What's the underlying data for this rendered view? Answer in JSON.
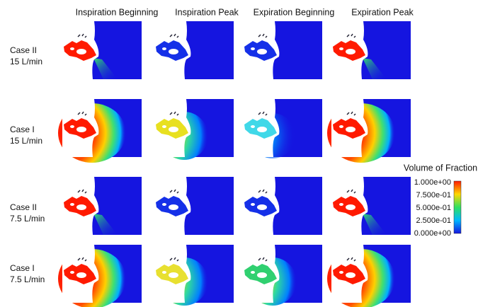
{
  "columns": [
    "Inspiration Beginning",
    "Inspiration Peak",
    "Expiration Beginning",
    "Expiration Peak"
  ],
  "rows": [
    {
      "case": "Case II",
      "flow": "15 L/min"
    },
    {
      "case": "Case I",
      "flow": "15 L/min"
    },
    {
      "case": "Case II",
      "flow": "7.5 L/min"
    },
    {
      "case": "Case I",
      "flow": "7.5 L/min"
    }
  ],
  "colorbar": {
    "title": "Volume of Fraction",
    "ticks": [
      "1.000e+00",
      "7.500e-01",
      "5.000e-01",
      "2.500e-01",
      "0.000e+00"
    ]
  }
}
